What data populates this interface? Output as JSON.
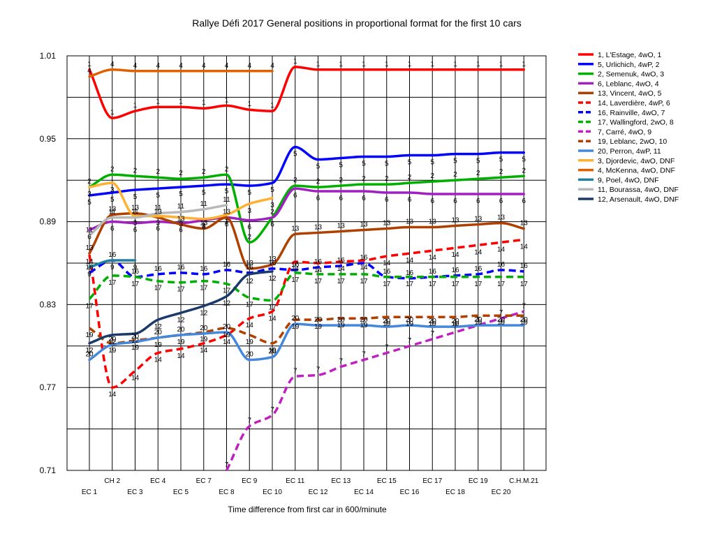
{
  "chart_data": {
    "type": "line",
    "title": "Rallye Défi 2017  General positions in proportional format for the first 10 cars",
    "xlabel": "Time difference from first car in 600/minute",
    "ylabel": "",
    "ylim": [
      0.71,
      1.01
    ],
    "yticks": [
      0.71,
      0.77,
      0.83,
      0.89,
      0.95,
      1.01
    ],
    "ytick_labels": [
      "0.71",
      "0.77",
      "0.83",
      "0.89",
      "0.95",
      "1.01"
    ],
    "grid": "horizontal lines at tick values and midpoints, vertical lines at each stage",
    "legend_position": "right",
    "categories": [
      "EC 1",
      "CH 2",
      "EC 3",
      "EC 4",
      "EC 5",
      "EC 7",
      "EC 8",
      "EC 9",
      "EC 10",
      "EC 11",
      "EC 12",
      "EC 13",
      "EC 14",
      "EC 15",
      "EC 16",
      "EC 17",
      "EC 18",
      "EC 19",
      "EC 20",
      "C.H.M.21"
    ],
    "series": [
      {
        "name": "1, L'Estage, 4wO, 1",
        "label": "1",
        "color": "#ff0000",
        "dash": false,
        "values": [
          1.0,
          0.965,
          0.97,
          0.973,
          0.973,
          0.972,
          0.974,
          0.971,
          0.97,
          1.002,
          1.0,
          1.0,
          1.0,
          1.0,
          1.0,
          1.0,
          1.0,
          1.0,
          1.0,
          1.0
        ]
      },
      {
        "name": "5, Urlichich, 4wP, 2",
        "label": "5",
        "color": "#0000ff",
        "dash": false,
        "values": [
          0.909,
          0.911,
          0.913,
          0.914,
          0.915,
          0.916,
          0.917,
          0.916,
          0.918,
          0.944,
          0.935,
          0.936,
          0.937,
          0.937,
          0.938,
          0.938,
          0.939,
          0.939,
          0.94,
          0.94
        ]
      },
      {
        "name": "2, Semenuk, 4wO, 3",
        "label": "2",
        "color": "#00b000",
        "dash": false,
        "values": [
          0.915,
          0.924,
          0.923,
          0.922,
          0.921,
          0.922,
          0.924,
          0.875,
          0.893,
          0.916,
          0.915,
          0.916,
          0.917,
          0.917,
          0.918,
          0.919,
          0.92,
          0.921,
          0.922,
          0.923
        ]
      },
      {
        "name": "6, Leblanc, 4wO, 4",
        "label": "6",
        "color": "#a020c0",
        "dash": false,
        "values": [
          0.884,
          0.89,
          0.889,
          0.89,
          0.889,
          0.891,
          0.893,
          0.891,
          0.893,
          0.914,
          0.912,
          0.912,
          0.912,
          0.911,
          0.911,
          0.91,
          0.91,
          0.91,
          0.91,
          0.91
        ]
      },
      {
        "name": "13, Vincent, 4wO, 5",
        "label": "13",
        "color": "#b04000",
        "dash": false,
        "values": [
          0.867,
          0.895,
          0.896,
          0.893,
          0.888,
          0.885,
          0.893,
          0.856,
          0.859,
          0.881,
          0.882,
          0.883,
          0.884,
          0.885,
          0.886,
          0.886,
          0.887,
          0.888,
          0.889,
          0.885
        ]
      },
      {
        "name": "14, Laverdière, 4wP, 6",
        "label": "14",
        "color": "#ff0000",
        "dash": true,
        "values": [
          0.866,
          0.77,
          0.782,
          0.795,
          0.798,
          0.802,
          0.808,
          0.82,
          0.825,
          0.861,
          0.86,
          0.861,
          0.862,
          0.865,
          0.867,
          0.869,
          0.871,
          0.873,
          0.875,
          0.877
        ]
      },
      {
        "name": "16, Rainville, 4wO, 7",
        "label": "16",
        "color": "#0000ff",
        "dash": true,
        "values": [
          0.853,
          0.862,
          0.85,
          0.852,
          0.853,
          0.852,
          0.855,
          0.853,
          0.856,
          0.855,
          0.857,
          0.858,
          0.86,
          0.85,
          0.849,
          0.85,
          0.851,
          0.852,
          0.855,
          0.854
        ]
      },
      {
        "name": "17, Wallingford, 2wO, 8",
        "label": "17",
        "color": "#00b000",
        "dash": true,
        "values": [
          0.834,
          0.851,
          0.85,
          0.847,
          0.846,
          0.847,
          0.845,
          0.835,
          0.833,
          0.853,
          0.852,
          0.852,
          0.852,
          0.85,
          0.85,
          0.85,
          0.85,
          0.85,
          0.85,
          0.85
        ]
      },
      {
        "name": "7, Carré, 4wO, 9",
        "label": "7",
        "color": "#c020c0",
        "dash": true,
        "values": [
          null,
          null,
          null,
          null,
          null,
          null,
          0.71,
          0.742,
          0.75,
          0.778,
          0.779,
          0.785,
          0.79,
          0.795,
          0.8,
          0.805,
          0.81,
          0.815,
          0.82,
          0.825
        ]
      },
      {
        "name": "19, Leblanc, 2wO, 10",
        "label": "19",
        "color": "#b04000",
        "dash": true,
        "values": [
          0.813,
          0.802,
          0.804,
          0.806,
          0.808,
          0.81,
          0.813,
          0.808,
          0.802,
          0.819,
          0.819,
          0.82,
          0.82,
          0.821,
          0.821,
          0.821,
          0.821,
          0.822,
          0.822,
          0.822
        ]
      },
      {
        "name": "20, Perron, 4wP, 11",
        "label": "20",
        "color": "#4488dd",
        "dash": false,
        "values": [
          0.79,
          0.801,
          0.803,
          0.806,
          0.808,
          0.809,
          0.81,
          0.79,
          0.792,
          0.816,
          0.815,
          0.815,
          0.815,
          0.814,
          0.815,
          0.814,
          0.814,
          0.815,
          0.815,
          0.815
        ]
      },
      {
        "name": "3, Djordevic, 4wO, DNF",
        "label": "3",
        "color": "#ffb030",
        "dash": false,
        "values": [
          0.915,
          0.918,
          0.894,
          0.894,
          0.893,
          0.892,
          0.895,
          0.903,
          0.907,
          null,
          null,
          null,
          null,
          null,
          null,
          null,
          null,
          null,
          null,
          null
        ]
      },
      {
        "name": "4, McKenna, 4wO, DNF",
        "label": "4",
        "color": "#e06000",
        "dash": false,
        "values": [
          0.995,
          1.0,
          0.999,
          0.999,
          0.999,
          0.999,
          0.999,
          0.999,
          0.999,
          null,
          null,
          null,
          null,
          null,
          null,
          null,
          null,
          null,
          null,
          null
        ]
      },
      {
        "name": "9, Poel, 4wO, DNF",
        "label": "9",
        "color": "#2080a0",
        "dash": false,
        "values": [
          0.857,
          0.862,
          0.862,
          null,
          null,
          null,
          null,
          null,
          null,
          null,
          null,
          null,
          null,
          null,
          null,
          null,
          null,
          null,
          null,
          null
        ]
      },
      {
        "name": "11, Bourassa, 4wO, DNF",
        "label": "11",
        "color": "#b8b8b8",
        "dash": false,
        "values": [
          0.88,
          0.893,
          0.893,
          0.896,
          0.897,
          0.899,
          0.902,
          null,
          null,
          null,
          null,
          null,
          null,
          null,
          null,
          null,
          null,
          null,
          null,
          null
        ]
      },
      {
        "name": "12, Arsenault, 4wO, DNF",
        "label": "12",
        "color": "#1a3a6a",
        "dash": false,
        "values": [
          0.802,
          0.808,
          0.809,
          0.819,
          0.824,
          0.829,
          0.836,
          0.852,
          0.854,
          null,
          null,
          null,
          null,
          null,
          null,
          null,
          null,
          null,
          null,
          null
        ]
      }
    ]
  }
}
